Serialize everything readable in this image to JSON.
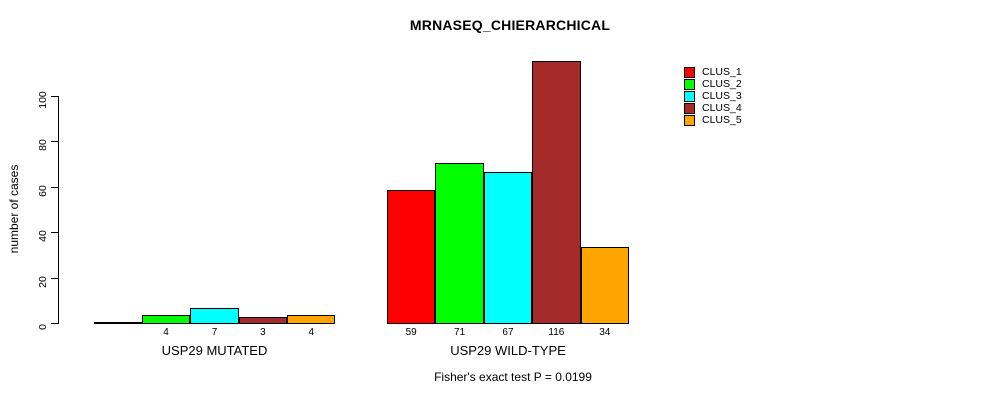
{
  "chart_data": {
    "type": "bar",
    "title": "MRNASEQ_CHIERARCHICAL",
    "ylabel": "number of cases",
    "footnote": "Fisher's exact test P = 0.0199",
    "ylim": [
      0,
      100
    ],
    "yticks": [
      "0",
      "20",
      "40",
      "60",
      "80",
      "100"
    ],
    "grid": false,
    "legend_position": "top-right",
    "series_names": [
      "CLUS_1",
      "CLUS_2",
      "CLUS_3",
      "CLUS_4",
      "CLUS_5"
    ],
    "colors": [
      "#FF0000",
      "#00FF00",
      "#00FFFF",
      "#A52A2A",
      "#FFA500"
    ],
    "groups": [
      {
        "label": "USP29 MUTATED",
        "values": [
          0,
          4,
          7,
          3,
          4
        ],
        "bar_labels": [
          "",
          "4",
          "7",
          "3",
          "4"
        ]
      },
      {
        "label": "USP29 WILD-TYPE",
        "values": [
          59,
          71,
          67,
          116,
          34
        ],
        "bar_labels": [
          "59",
          "71",
          "67",
          "116",
          "34"
        ]
      }
    ]
  }
}
